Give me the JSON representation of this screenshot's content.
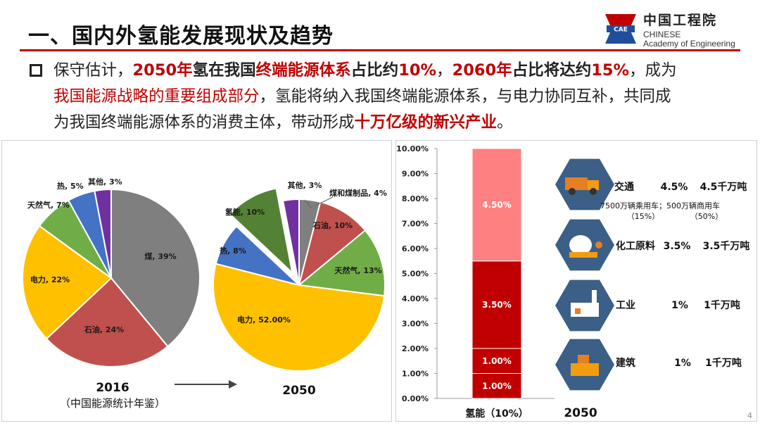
{
  "header": {
    "title": "一、国内外氢能发展现状及趋势",
    "logo_cn": "中国工程院",
    "logo_en_line1": "CHINESE",
    "logo_en_line2": "Academy of Engineering",
    "logo_badge": "CAE"
  },
  "paragraph": {
    "lines": [
      [
        {
          "t": "保守估计，",
          "s": "n"
        },
        {
          "t": "2050年",
          "s": "r"
        },
        {
          "t": "氢在我国",
          "s": "k"
        },
        {
          "t": "终端能源体系",
          "s": "r"
        },
        {
          "t": "占比约",
          "s": "k"
        },
        {
          "t": "10%",
          "s": "r"
        },
        {
          "t": "，",
          "s": "n"
        },
        {
          "t": "2060年",
          "s": "r"
        },
        {
          "t": "占比将达约",
          "s": "k"
        },
        {
          "t": "15%",
          "s": "r"
        },
        {
          "t": "，成为",
          "s": "n"
        }
      ],
      [
        {
          "t": "我国能源战略的重要组成部分",
          "s": "rn"
        },
        {
          "t": "，氢能将纳入我国终端能源体系，与电力协同互补，共同成",
          "s": "n"
        }
      ],
      [
        {
          "t": "为我国终端能源体系的消费主体，带动形成",
          "s": "n"
        },
        {
          "t": "十万亿级的新兴产业",
          "s": "r"
        },
        {
          "t": "。",
          "s": "n"
        }
      ]
    ]
  },
  "pie_charts": {
    "chart_data": [
      {
        "type": "pie",
        "title": "2016",
        "subtitle": "（中国能源统计年鉴）",
        "slices": [
          {
            "label": "煤, 39%",
            "value": 39,
            "color": "#7f7f7f"
          },
          {
            "label": "石油, 24%",
            "value": 24,
            "color": "#c0504d"
          },
          {
            "label": "电力, 22%",
            "value": 22,
            "color": "#ffc000"
          },
          {
            "label": "天然气, 7%",
            "value": 7,
            "color": "#70ad47"
          },
          {
            "label": "热, 5%",
            "value": 5,
            "color": "#4472c4"
          },
          {
            "label": "其他, 3%",
            "value": 3,
            "color": "#7030a0"
          }
        ]
      },
      {
        "type": "pie",
        "title": "2050",
        "slices": [
          {
            "label": "煤和煤制品, 4%",
            "value": 4,
            "color": "#7f7f7f"
          },
          {
            "label": "石油, 10%",
            "value": 10,
            "color": "#c0504d"
          },
          {
            "label": "天然气, 13%",
            "value": 13,
            "color": "#70ad47"
          },
          {
            "label": "电力, 52.00%",
            "value": 52,
            "color": "#ffc000"
          },
          {
            "label": "热, 8%",
            "value": 8,
            "color": "#4472c4"
          },
          {
            "label": "氢能, 10%",
            "value": 10,
            "color": "#548235",
            "exploded": true
          },
          {
            "label": "其他, 3%",
            "value": 3,
            "color": "#7030a0"
          }
        ]
      }
    ]
  },
  "bar_chart": {
    "chart_data": {
      "type": "bar",
      "stacked": true,
      "categories": [
        "氢能（10%）"
      ],
      "x_extra_label": "2050",
      "ylim": [
        0,
        10
      ],
      "y_ticks": [
        "0.00%",
        "1.00%",
        "2.00%",
        "3.00%",
        "4.00%",
        "5.00%",
        "6.00%",
        "7.00%",
        "8.00%",
        "9.00%",
        "10.00%"
      ],
      "series": [
        {
          "label": "1.00%",
          "values": [
            1.0
          ],
          "color": "#c00000"
        },
        {
          "label": "1.00%",
          "values": [
            1.0
          ],
          "color": "#c00000"
        },
        {
          "label": "3.50%",
          "values": [
            3.5
          ],
          "color": "#c00000"
        },
        {
          "label": "4.50%",
          "values": [
            4.5
          ],
          "color": "#ff8080"
        }
      ]
    }
  },
  "sectors": [
    {
      "name": "交通",
      "share": "4.5%",
      "amount": "4.5千万吨",
      "note_left": "7500万辆乘用车；500万辆商用车",
      "note_sub_left": "（15%）",
      "note_sub_right": "（50%）",
      "icon": "truck-icon"
    },
    {
      "name": "化工原料",
      "share": "3.5%",
      "amount": "3.5千万吨",
      "icon": "chemical-plant-icon"
    },
    {
      "name": "工业",
      "share": "1%",
      "amount": "1千万吨",
      "icon": "factory-icon"
    },
    {
      "name": "建筑",
      "share": "1%",
      "amount": "1千万吨",
      "icon": "building-icon"
    }
  ],
  "arrow_label": "",
  "page_number": "4",
  "colors": {
    "accent_red": "#c00000",
    "icon_bg": "#3b5f86"
  }
}
